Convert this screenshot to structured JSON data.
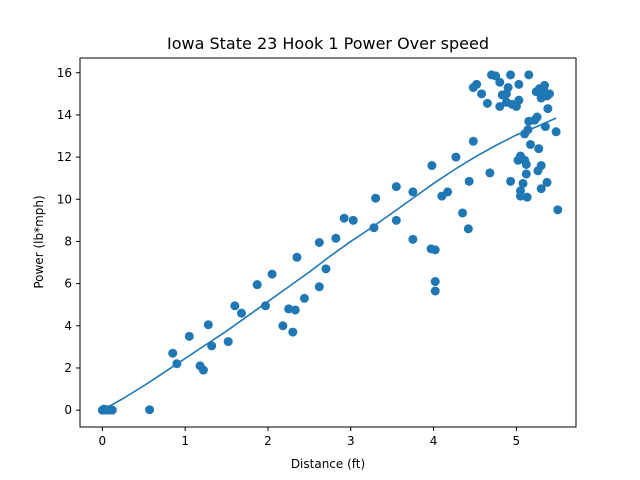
{
  "chart_data": {
    "type": "scatter",
    "title": "Iowa State 23 Hook 1 Power Over speed",
    "xlabel": "Distance (ft)",
    "ylabel": "Power (lb*mph)",
    "xlim": [
      -0.27,
      5.72
    ],
    "ylim": [
      -0.8,
      16.7
    ],
    "xticks": [
      0,
      1,
      2,
      3,
      4,
      5
    ],
    "yticks": [
      0,
      2,
      4,
      6,
      8,
      10,
      12,
      14,
      16
    ],
    "grid": false,
    "legend": "none",
    "color": "#1f77b4",
    "points": [
      [
        0.0,
        0.0
      ],
      [
        0.02,
        0.05
      ],
      [
        0.04,
        0.0
      ],
      [
        0.06,
        0.02
      ],
      [
        0.08,
        0.0
      ],
      [
        0.1,
        0.03
      ],
      [
        0.12,
        0.0
      ],
      [
        0.57,
        0.02
      ],
      [
        0.85,
        2.7
      ],
      [
        0.9,
        2.2
      ],
      [
        1.05,
        3.5
      ],
      [
        1.18,
        2.1
      ],
      [
        1.22,
        1.9
      ],
      [
        1.28,
        4.05
      ],
      [
        1.32,
        3.05
      ],
      [
        1.52,
        3.25
      ],
      [
        1.6,
        4.95
      ],
      [
        1.68,
        4.6
      ],
      [
        1.87,
        5.95
      ],
      [
        1.97,
        4.95
      ],
      [
        2.05,
        6.45
      ],
      [
        2.18,
        4.0
      ],
      [
        2.25,
        4.8
      ],
      [
        2.3,
        3.7
      ],
      [
        2.33,
        4.75
      ],
      [
        2.35,
        7.25
      ],
      [
        2.44,
        5.3
      ],
      [
        2.62,
        5.85
      ],
      [
        2.62,
        7.95
      ],
      [
        2.7,
        6.7
      ],
      [
        2.82,
        8.15
      ],
      [
        2.92,
        9.1
      ],
      [
        3.03,
        9.0
      ],
      [
        3.28,
        8.65
      ],
      [
        3.3,
        10.05
      ],
      [
        3.55,
        9.0
      ],
      [
        3.55,
        10.6
      ],
      [
        3.75,
        8.1
      ],
      [
        3.75,
        10.35
      ],
      [
        3.97,
        7.65
      ],
      [
        3.98,
        11.6
      ],
      [
        4.02,
        7.6
      ],
      [
        4.02,
        6.1
      ],
      [
        4.02,
        5.65
      ],
      [
        4.1,
        10.15
      ],
      [
        4.17,
        10.35
      ],
      [
        4.27,
        12.0
      ],
      [
        4.35,
        9.35
      ],
      [
        4.42,
        8.6
      ],
      [
        4.43,
        10.85
      ],
      [
        4.48,
        12.75
      ],
      [
        4.48,
        15.3
      ],
      [
        4.52,
        15.45
      ],
      [
        4.58,
        15.0
      ],
      [
        4.65,
        14.55
      ],
      [
        4.68,
        11.25
      ],
      [
        4.7,
        15.9
      ],
      [
        4.75,
        15.85
      ],
      [
        4.8,
        15.55
      ],
      [
        4.8,
        14.4
      ],
      [
        4.83,
        14.95
      ],
      [
        4.88,
        15.0
      ],
      [
        4.88,
        14.6
      ],
      [
        4.9,
        15.3
      ],
      [
        4.93,
        15.9
      ],
      [
        4.93,
        10.85
      ],
      [
        4.95,
        14.5
      ],
      [
        5.0,
        14.4
      ],
      [
        5.02,
        11.85
      ],
      [
        5.03,
        15.45
      ],
      [
        5.03,
        14.7
      ],
      [
        5.05,
        12.05
      ],
      [
        5.05,
        10.4
      ],
      [
        5.05,
        10.15
      ],
      [
        5.08,
        10.75
      ],
      [
        5.1,
        11.85
      ],
      [
        5.1,
        13.1
      ],
      [
        5.12,
        11.65
      ],
      [
        5.12,
        11.2
      ],
      [
        5.13,
        10.1
      ],
      [
        5.14,
        13.3
      ],
      [
        5.15,
        13.7
      ],
      [
        5.15,
        15.9
      ],
      [
        5.17,
        12.6
      ],
      [
        5.22,
        13.75
      ],
      [
        5.24,
        15.1
      ],
      [
        5.25,
        13.9
      ],
      [
        5.26,
        11.35
      ],
      [
        5.27,
        12.4
      ],
      [
        5.28,
        15.25
      ],
      [
        5.3,
        14.8
      ],
      [
        5.3,
        15.0
      ],
      [
        5.3,
        11.6
      ],
      [
        5.3,
        10.5
      ],
      [
        5.32,
        15.05
      ],
      [
        5.33,
        15.15
      ],
      [
        5.34,
        15.4
      ],
      [
        5.35,
        13.45
      ],
      [
        5.37,
        14.9
      ],
      [
        5.37,
        10.8
      ],
      [
        5.38,
        14.3
      ],
      [
        5.4,
        15.0
      ],
      [
        5.48,
        13.2
      ],
      [
        5.5,
        9.5
      ]
    ],
    "fit_curve": [
      [
        0.0,
        0.0
      ],
      [
        0.25,
        0.55
      ],
      [
        0.5,
        1.15
      ],
      [
        0.75,
        1.8
      ],
      [
        1.0,
        2.45
      ],
      [
        1.25,
        3.1
      ],
      [
        1.5,
        3.75
      ],
      [
        1.75,
        4.45
      ],
      [
        2.0,
        5.15
      ],
      [
        2.25,
        5.85
      ],
      [
        2.5,
        6.55
      ],
      [
        2.75,
        7.3
      ],
      [
        3.0,
        8.0
      ],
      [
        3.25,
        8.65
      ],
      [
        3.5,
        9.35
      ],
      [
        3.75,
        10.05
      ],
      [
        4.0,
        10.75
      ],
      [
        4.25,
        11.4
      ],
      [
        4.5,
        12.0
      ],
      [
        4.75,
        12.55
      ],
      [
        5.0,
        13.05
      ],
      [
        5.25,
        13.45
      ],
      [
        5.48,
        13.85
      ]
    ]
  }
}
